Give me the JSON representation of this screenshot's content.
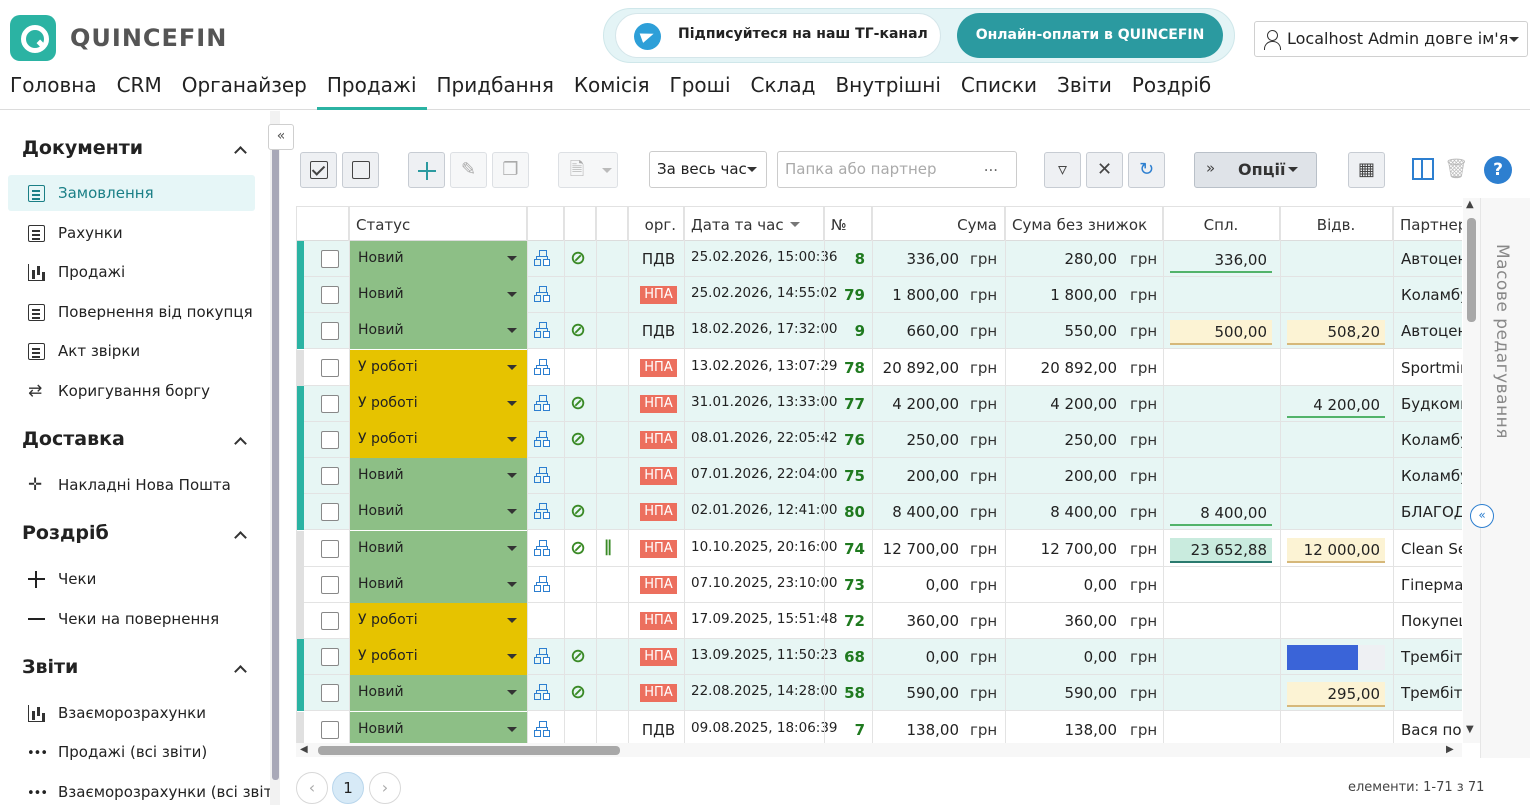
{
  "app": {
    "logo_text": "QUINCEFIN"
  },
  "promo": {
    "telegram": "Підписуйтеся на наш ТГ-канал",
    "pay": "Онлайн-оплати в QUINCEFIN"
  },
  "user": {
    "name": "Localhost Admin довге ім'я"
  },
  "nav": [
    "Головна",
    "CRM",
    "Органайзер",
    "Продажі",
    "Придбання",
    "Комісія",
    "Гроші",
    "Склад",
    "Внутрішні",
    "Списки",
    "Звіти",
    "Роздріб"
  ],
  "nav_active": "Продажі",
  "sidebar": {
    "sections": [
      {
        "title": "Документи",
        "items": [
          "Замовлення",
          "Рахунки",
          "Продажі",
          "Повернення від покупця",
          "Акт звірки",
          "Коригування боргу"
        ]
      },
      {
        "title": "Доставка",
        "items": [
          "Накладні Нова Пошта"
        ]
      },
      {
        "title": "Роздріб",
        "items": [
          "Чеки",
          "Чеки на повернення"
        ]
      },
      {
        "title": "Звіти",
        "items": [
          "Взаєморозрахунки",
          "Продажі (всі звіти)",
          "Взаєморозрахунки (всі звіт"
        ]
      }
    ],
    "active_item": "Замовлення"
  },
  "toolbar": {
    "period": "За весь час",
    "partner_placeholder": "Папка або партнер",
    "partner_dots": "...",
    "options": "Опції",
    "help": "?"
  },
  "grid": {
    "headers": {
      "status": "Статус",
      "org": "орг.",
      "datetime": "Дата та час",
      "num": "№",
      "sum": "Сума",
      "sum_nd": "Сума без знижок",
      "paid": "Спл.",
      "shipped": "Відв.",
      "partner": "Партнер"
    },
    "currency": "грн",
    "rows": [
      {
        "status": "Новий",
        "st": "new",
        "link": true,
        "clip": false,
        "org": "ПДВ",
        "dt": "25.02.2026, 15:00:36",
        "num": "8",
        "sum": "336,00",
        "sum_nd": "280,00",
        "paid": "336,00",
        "paid_style": "green",
        "shipped": "",
        "shipped_style": "",
        "partner": "Автоцентр",
        "row": "green"
      },
      {
        "status": "Новий",
        "st": "new",
        "link": false,
        "clip": false,
        "org": "НПА",
        "dt": "25.02.2026, 14:55:02",
        "num": "79",
        "sum": "1 800,00",
        "sum_nd": "1 800,00",
        "paid": "",
        "paid_style": "",
        "shipped": "",
        "shipped_style": "",
        "partner": "Коламбус",
        "row": "green"
      },
      {
        "status": "Новий",
        "st": "new",
        "link": true,
        "clip": false,
        "org": "ПДВ",
        "dt": "18.02.2026, 17:32:00",
        "num": "9",
        "sum": "660,00",
        "sum_nd": "550,00",
        "paid": "500,00",
        "paid_style": "yellow",
        "shipped": "508,20",
        "shipped_style": "yellow",
        "partner": "Автоцентр",
        "row": "green"
      },
      {
        "status": "У роботі",
        "st": "work",
        "link": false,
        "clip": false,
        "org": "НПА",
        "dt": "13.02.2026, 13:07:29",
        "num": "78",
        "sum": "20 892,00",
        "sum_nd": "20 892,00",
        "paid": "",
        "paid_style": "",
        "shipped": "",
        "shipped_style": "",
        "partner": "Sportmir",
        "row": "white"
      },
      {
        "status": "У роботі",
        "st": "work",
        "link": true,
        "clip": false,
        "org": "НПА",
        "dt": "31.01.2026, 13:33:00",
        "num": "77",
        "sum": "4 200,00",
        "sum_nd": "4 200,00",
        "paid": "",
        "paid_style": "",
        "shipped": "4 200,00",
        "shipped_style": "green",
        "partner": "Будкомпл",
        "row": "green"
      },
      {
        "status": "У роботі",
        "st": "work",
        "link": true,
        "clip": false,
        "org": "НПА",
        "dt": "08.01.2026, 22:05:42",
        "num": "76",
        "sum": "250,00",
        "sum_nd": "250,00",
        "paid": "",
        "paid_style": "",
        "shipped": "",
        "shipped_style": "",
        "partner": "Коламбус",
        "row": "green"
      },
      {
        "status": "Новий",
        "st": "new",
        "link": false,
        "clip": false,
        "org": "НПА",
        "dt": "07.01.2026, 22:04:00",
        "num": "75",
        "sum": "200,00",
        "sum_nd": "200,00",
        "paid": "",
        "paid_style": "",
        "shipped": "",
        "shipped_style": "",
        "partner": "Коламбус",
        "row": "green"
      },
      {
        "status": "Новий",
        "st": "new",
        "link": true,
        "clip": false,
        "org": "НПА",
        "dt": "02.01.2026, 12:41:00",
        "num": "80",
        "sum": "8 400,00",
        "sum_nd": "8 400,00",
        "paid": "8 400,00",
        "paid_style": "green",
        "shipped": "",
        "shipped_style": "",
        "partner": "БЛАГОДІ",
        "row": "green"
      },
      {
        "status": "Новий",
        "st": "new",
        "link": true,
        "clip": true,
        "org": "НПА",
        "dt": "10.10.2025, 20:16:00",
        "num": "74",
        "sum": "12 700,00",
        "sum_nd": "12 700,00",
        "paid": "23 652,88",
        "paid_style": "greenbold",
        "shipped": "12 000,00",
        "shipped_style": "yellow",
        "partner": "Clean Ser",
        "row": "white"
      },
      {
        "status": "Новий",
        "st": "new",
        "link": false,
        "clip": false,
        "org": "НПА",
        "dt": "07.10.2025, 23:10:00",
        "num": "73",
        "sum": "0,00",
        "sum_nd": "0,00",
        "paid": "",
        "paid_style": "",
        "shipped": "",
        "shipped_style": "",
        "partner": "Гіпермар",
        "row": "white"
      },
      {
        "status": "У роботі",
        "st": "work",
        "link": false,
        "clip": false,
        "tree": false,
        "org": "НПА",
        "dt": "17.09.2025, 15:51:48",
        "num": "72",
        "sum": "360,00",
        "sum_nd": "360,00",
        "paid": "",
        "paid_style": "",
        "shipped": "",
        "shipped_style": "",
        "partner": "Покупець",
        "row": "white"
      },
      {
        "status": "У роботі",
        "st": "work",
        "link": true,
        "clip": false,
        "org": "НПА",
        "dt": "13.09.2025, 11:50:23",
        "num": "68",
        "sum": "0,00",
        "sum_nd": "0,00",
        "paid": "",
        "paid_style": "",
        "shipped": "",
        "shipped_style": "bluebar",
        "shipped_fill": 0.72,
        "partner": "Трембіта",
        "row": "green"
      },
      {
        "status": "Новий",
        "st": "new",
        "link": true,
        "clip": false,
        "org": "НПА",
        "dt": "22.08.2025, 14:28:00",
        "num": "58",
        "sum": "590,00",
        "sum_nd": "590,00",
        "paid": "",
        "paid_style": "",
        "shipped": "295,00",
        "shipped_style": "yellow",
        "partner": "Трембіта",
        "row": "green"
      },
      {
        "status": "Новий",
        "st": "new",
        "link": false,
        "clip": false,
        "org": "ПДВ",
        "dt": "09.08.2025, 18:06:39",
        "num": "7",
        "sum": "138,00",
        "sum_nd": "138,00",
        "paid": "",
        "paid_style": "",
        "shipped": "",
        "shipped_style": "",
        "partner": "Вася пос",
        "row": "white"
      }
    ]
  },
  "mass_edit": "Масове редагування",
  "pager": {
    "current": "1"
  },
  "count": "елементи: 1-71 з 71",
  "colors": {
    "accent": "#2bb3a3",
    "new": "#8dbf86",
    "work": "#e6c300",
    "npa": "#ec6f5e",
    "link": "#2d7fd0"
  }
}
